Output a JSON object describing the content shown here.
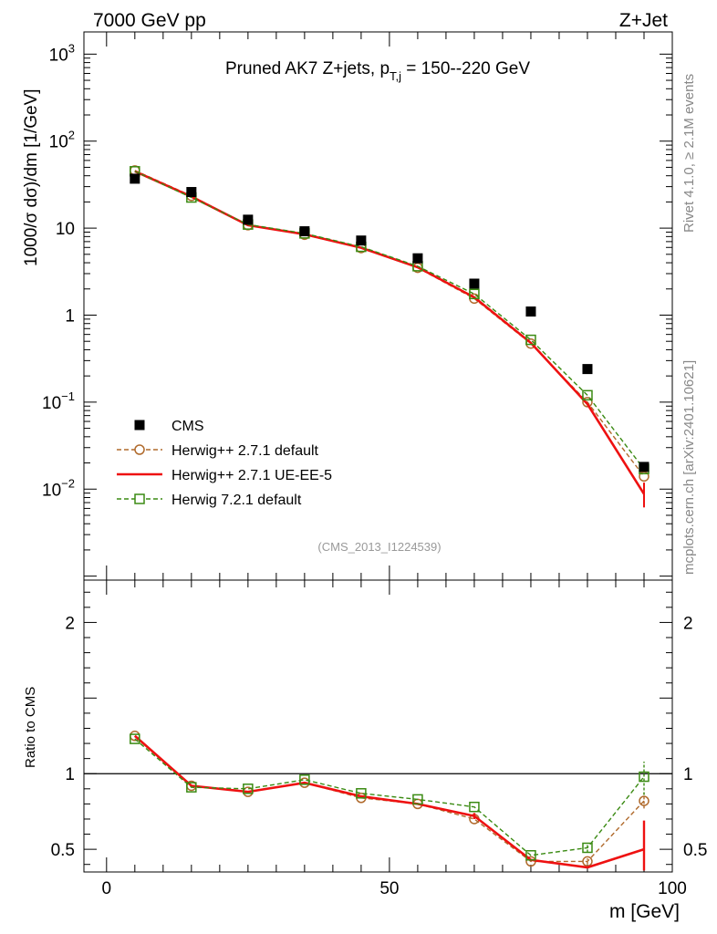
{
  "header": {
    "left_label": "7000 GeV pp",
    "right_label": "Z+Jet",
    "side_label_top": "Rivet 4.1.0, ≥ 2.1M events",
    "side_label_bottom": "mcplots.cern.ch [arXiv:2401.10621]"
  },
  "chart_data": [
    {
      "type": "line",
      "title_main": "Pruned AK7 Z+jets, p",
      "title_sub": "T,j",
      "title_tail": " = 150--220 GeV",
      "analysis_id": "(CMS_2013_I1224539)",
      "ylabel": "1000/σ   dσ)/dm [1/GeV]",
      "yscale": "log",
      "ylim": [
        0.0009,
        1800
      ],
      "xlim": [
        -4,
        100
      ],
      "y_ticks": [
        {
          "value": 1000,
          "base": "10",
          "exp": "3"
        },
        {
          "value": 100,
          "base": "10",
          "exp": "2"
        },
        {
          "value": 10,
          "base": "10",
          "exp": ""
        },
        {
          "value": 1,
          "base": "1",
          "exp": ""
        },
        {
          "value": 0.1,
          "base": "10",
          "exp": "−1"
        },
        {
          "value": 0.01,
          "base": "10",
          "exp": "−2"
        }
      ],
      "x": [
        5,
        15,
        25,
        35,
        45,
        55,
        65,
        75,
        85,
        95
      ],
      "series": [
        {
          "name": "CMS",
          "style": "marker-square",
          "color": "#000000",
          "values": [
            37,
            26,
            12.5,
            9.2,
            7.2,
            4.5,
            2.3,
            1.1,
            0.24,
            0.018
          ]
        },
        {
          "name": "Herwig++ 2.7.1 default",
          "style": "dashed-circle",
          "color": "#b06a2c",
          "values": [
            46,
            23.5,
            10.8,
            8.4,
            5.9,
            3.5,
            1.55,
            0.47,
            0.1,
            0.014
          ]
        },
        {
          "name": "Herwig++ 2.7.1 UE-EE-5",
          "style": "solid",
          "color": "#ee1111",
          "values": [
            45,
            23,
            10.8,
            8.5,
            5.95,
            3.55,
            1.6,
            0.48,
            0.095,
            0.0088
          ]
        },
        {
          "name": "Herwig 7.2.1 default",
          "style": "dashed-square",
          "color": "#3a8a12",
          "values": [
            45,
            22.5,
            11,
            8.7,
            6.1,
            3.65,
            1.75,
            0.52,
            0.12,
            0.017
          ]
        }
      ],
      "legend_position": "left-lower"
    },
    {
      "type": "line",
      "ylabel": "Ratio to CMS",
      "xlabel": "m [GeV]",
      "ylim": [
        0.35,
        2.28
      ],
      "xlim": [
        -4,
        100
      ],
      "x_ticks": [
        "0",
        "50",
        "100"
      ],
      "y_ticks": [
        "0.5",
        "1",
        "2"
      ],
      "reference": 1,
      "x": [
        5,
        15,
        25,
        35,
        45,
        55,
        65,
        75,
        85,
        95
      ],
      "series": [
        {
          "name": "Herwig++ 2.7.1 default",
          "style": "dashed-circle",
          "color": "#b06a2c",
          "values": [
            1.25,
            0.92,
            0.88,
            0.94,
            0.84,
            0.8,
            0.7,
            0.42,
            0.42,
            0.82
          ]
        },
        {
          "name": "Herwig++ 2.7.1 UE-EE-5",
          "style": "solid",
          "color": "#ee1111",
          "values": [
            1.25,
            0.92,
            0.88,
            0.94,
            0.85,
            0.8,
            0.72,
            0.43,
            0.38,
            0.5
          ]
        },
        {
          "name": "Herwig 7.2.1 default",
          "style": "dashed-square",
          "color": "#3a8a12",
          "values": [
            1.23,
            0.91,
            0.9,
            0.96,
            0.87,
            0.83,
            0.78,
            0.46,
            0.51,
            0.98
          ]
        }
      ]
    }
  ]
}
